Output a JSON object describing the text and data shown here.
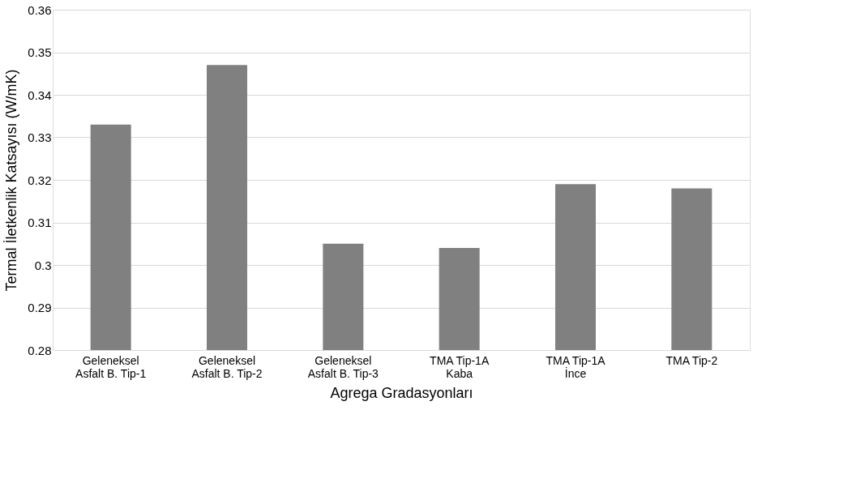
{
  "chart_data": {
    "type": "bar",
    "xlabel": "Agrega Gradasyonları",
    "ylabel": "Termal İletkenlik Katsayısı (W/mK)",
    "categories": [
      "Geleneksel Asfalt B. Tip-1",
      "Geleneksel Asfalt B. Tip-2",
      "Geleneksel Asfalt B. Tip-3",
      "TMA Tip-1A Kaba",
      "TMA Tip-1A İnce",
      "TMA Tip-2"
    ],
    "values": [
      0.333,
      0.347,
      0.305,
      0.304,
      0.319,
      0.318
    ],
    "color": "#808080",
    "ylim": [
      0.28,
      0.36
    ],
    "yticks": [
      0.28,
      0.29,
      0.3,
      0.31,
      0.32,
      0.33,
      0.34,
      0.35,
      0.36
    ],
    "grid": "y"
  }
}
